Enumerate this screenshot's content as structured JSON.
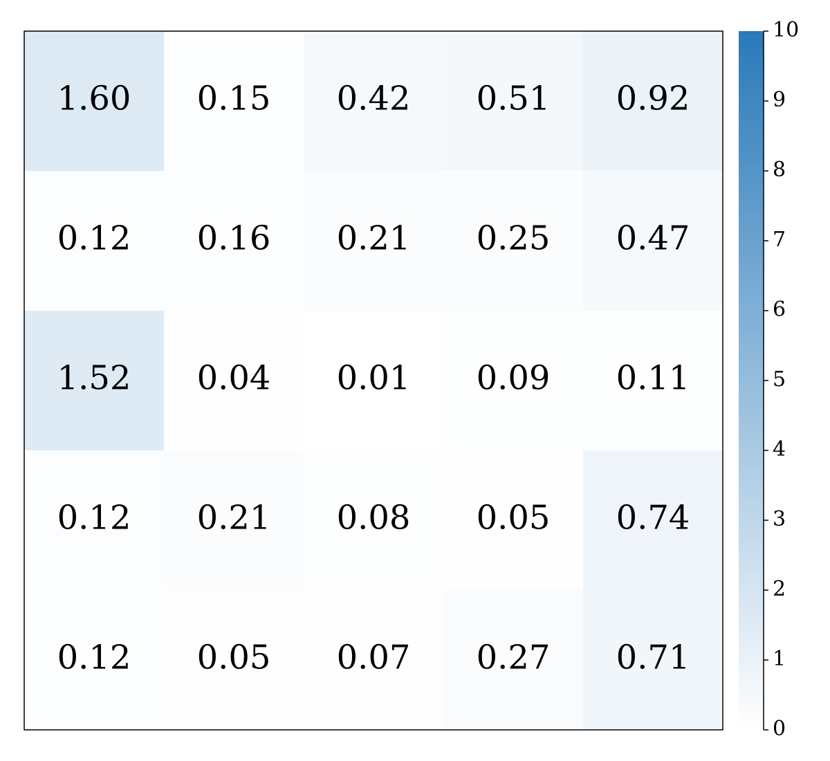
{
  "chart_data": {
    "type": "heatmap",
    "values": [
      [
        1.6,
        0.15,
        0.42,
        0.51,
        0.92
      ],
      [
        0.12,
        0.16,
        0.21,
        0.25,
        0.47
      ],
      [
        1.52,
        0.04,
        0.01,
        0.09,
        0.11
      ],
      [
        0.12,
        0.21,
        0.08,
        0.05,
        0.74
      ],
      [
        0.12,
        0.05,
        0.07,
        0.27,
        0.71
      ]
    ],
    "value_labels": [
      [
        "1.60",
        "0.15",
        "0.42",
        "0.51",
        "0.92"
      ],
      [
        "0.12",
        "0.16",
        "0.21",
        "0.25",
        "0.47"
      ],
      [
        "1.52",
        "0.04",
        "0.01",
        "0.09",
        "0.11"
      ],
      [
        "0.12",
        "0.21",
        "0.08",
        "0.05",
        "0.74"
      ],
      [
        "0.12",
        "0.05",
        "0.07",
        "0.27",
        "0.71"
      ]
    ],
    "colormap": [
      "#ffffff",
      "#2a7ab9"
    ],
    "clim": [
      0,
      10
    ],
    "cticks": [
      0,
      1,
      2,
      3,
      4,
      5,
      6,
      7,
      8,
      9,
      10
    ]
  }
}
